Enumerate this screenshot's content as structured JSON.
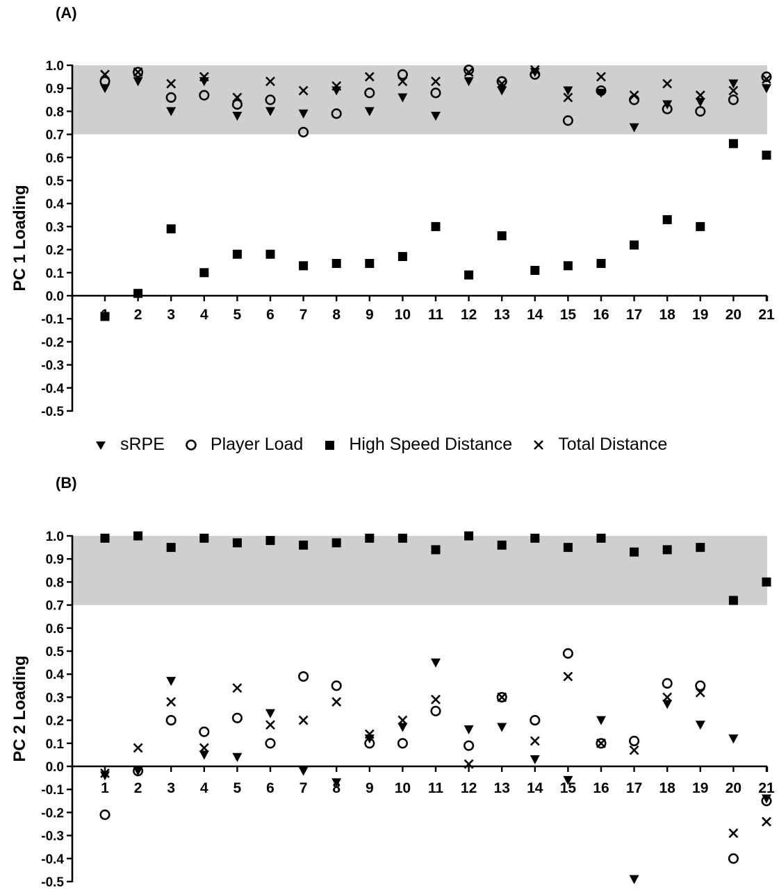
{
  "chart_data": [
    {
      "type": "scatter",
      "panel_label": "(A)",
      "ylabel": "PC 1 Loading",
      "xlabel": "",
      "ylim": [
        -0.5,
        1.0
      ],
      "yticks": [
        "-0.5",
        "-0.4",
        "-0.3",
        "-0.2",
        "-0.1",
        "0.0",
        "0.1",
        "0.2",
        "0.3",
        "0.4",
        "0.5",
        "0.6",
        "0.7",
        "0.8",
        "0.9",
        "1.0"
      ],
      "xticks": [
        "1",
        "2",
        "3",
        "4",
        "5",
        "6",
        "7",
        "8",
        "9",
        "10",
        "11",
        "12",
        "13",
        "14",
        "15",
        "16",
        "17",
        "18",
        "19",
        "20",
        "21"
      ],
      "shaded_band": [
        0.7,
        1.0
      ],
      "x": [
        1,
        2,
        3,
        4,
        5,
        6,
        7,
        8,
        9,
        10,
        11,
        12,
        13,
        14,
        15,
        16,
        17,
        18,
        19,
        20,
        21
      ],
      "series": [
        {
          "name": "sRPE",
          "marker": "triangle-down",
          "values": [
            0.9,
            0.93,
            0.8,
            0.93,
            0.78,
            0.8,
            0.79,
            0.89,
            0.8,
            0.86,
            0.78,
            0.93,
            0.89,
            0.97,
            0.89,
            0.88,
            0.73,
            0.83,
            0.84,
            0.92,
            0.9
          ]
        },
        {
          "name": "Player Load",
          "marker": "circle-open",
          "values": [
            0.93,
            0.97,
            0.86,
            0.87,
            0.83,
            0.85,
            0.71,
            0.79,
            0.88,
            0.96,
            0.88,
            0.98,
            0.93,
            0.96,
            0.76,
            0.89,
            0.85,
            0.81,
            0.8,
            0.85,
            0.95
          ]
        },
        {
          "name": "High Speed Distance",
          "marker": "square",
          "values": [
            -0.09,
            0.01,
            0.29,
            0.1,
            0.18,
            0.18,
            0.13,
            0.14,
            0.14,
            0.17,
            0.3,
            0.09,
            0.26,
            0.11,
            0.13,
            0.14,
            0.22,
            0.33,
            0.3,
            0.66,
            0.61
          ]
        },
        {
          "name": "Total Distance",
          "marker": "x",
          "values": [
            0.96,
            0.97,
            0.92,
            0.95,
            0.86,
            0.93,
            0.89,
            0.91,
            0.95,
            0.93,
            0.93,
            0.97,
            0.92,
            0.98,
            0.86,
            0.95,
            0.87,
            0.92,
            0.87,
            0.89,
            0.94
          ]
        }
      ]
    },
    {
      "type": "scatter",
      "panel_label": "(B)",
      "ylabel": "PC 2 Loading",
      "xlabel": "",
      "ylim": [
        -0.5,
        1.0
      ],
      "yticks": [
        "-0.5",
        "-0.4",
        "-0.3",
        "-0.2",
        "-0.1",
        "0.0",
        "0.1",
        "0.2",
        "0.3",
        "0.4",
        "0.5",
        "0.6",
        "0.7",
        "0.8",
        "0.9",
        "1.0"
      ],
      "xticks": [
        "1",
        "2",
        "3",
        "4",
        "5",
        "6",
        "7",
        "8",
        "9",
        "10",
        "11",
        "12",
        "13",
        "14",
        "15",
        "16",
        "17",
        "18",
        "19",
        "20",
        "21"
      ],
      "shaded_band": [
        0.7,
        1.0
      ],
      "x": [
        1,
        2,
        3,
        4,
        5,
        6,
        7,
        8,
        9,
        10,
        11,
        12,
        13,
        14,
        15,
        16,
        17,
        18,
        19,
        20,
        21
      ],
      "series": [
        {
          "name": "sRPE",
          "marker": "triangle-down",
          "values": [
            -0.04,
            -0.02,
            0.37,
            0.05,
            0.04,
            0.23,
            -0.02,
            -0.07,
            0.12,
            0.17,
            0.45,
            0.16,
            0.17,
            0.03,
            -0.06,
            0.2,
            -0.49,
            0.27,
            0.18,
            0.12,
            -0.14
          ]
        },
        {
          "name": "Player Load",
          "marker": "circle-open",
          "values": [
            -0.21,
            -0.02,
            0.2,
            0.15,
            0.21,
            0.1,
            0.39,
            0.35,
            0.1,
            0.1,
            0.24,
            0.09,
            0.3,
            0.2,
            0.49,
            0.1,
            0.11,
            0.36,
            0.35,
            -0.4,
            -0.15
          ]
        },
        {
          "name": "High Speed Distance",
          "marker": "square",
          "values": [
            0.99,
            1.0,
            0.95,
            0.99,
            0.97,
            0.98,
            0.96,
            0.97,
            0.99,
            0.99,
            0.94,
            1.0,
            0.96,
            0.99,
            0.95,
            0.99,
            0.93,
            0.94,
            0.95,
            0.72,
            0.8
          ]
        },
        {
          "name": "Total Distance",
          "marker": "x",
          "values": [
            -0.03,
            0.08,
            0.28,
            0.08,
            0.34,
            0.18,
            0.2,
            0.28,
            0.14,
            0.2,
            0.29,
            0.01,
            0.3,
            0.11,
            0.39,
            0.1,
            0.07,
            0.3,
            0.32,
            -0.29,
            -0.24
          ]
        }
      ]
    }
  ],
  "legend": [
    {
      "label": "sRPE",
      "marker": "triangle-down"
    },
    {
      "label": "Player Load",
      "marker": "circle-open"
    },
    {
      "label": "High Speed Distance",
      "marker": "square"
    },
    {
      "label": "Total Distance",
      "marker": "x"
    }
  ],
  "colors": {
    "band": "#cfcfcf",
    "ink": "#000000"
  }
}
